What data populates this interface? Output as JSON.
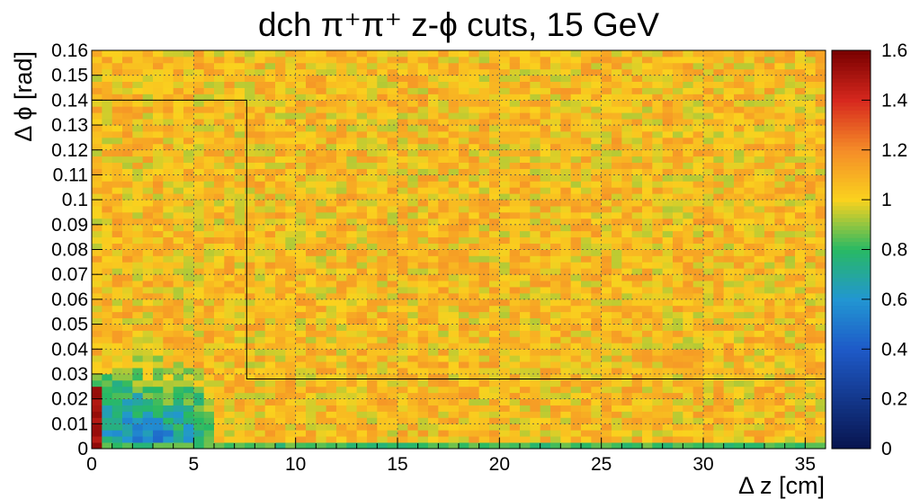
{
  "chart_data": {
    "type": "heatmap",
    "title": "dch π⁺π⁺  z-ϕ cuts, 15 GeV",
    "xlabel": "Δ z [cm]",
    "ylabel": "Δ ϕ [rad]",
    "xlim": [
      0,
      36
    ],
    "ylim": [
      0,
      0.16
    ],
    "x_ticks": [
      0,
      5,
      10,
      15,
      20,
      25,
      30,
      35
    ],
    "x_tick_labels": [
      "0",
      "5",
      "10",
      "15",
      "20",
      "25",
      "30",
      "35"
    ],
    "y_ticks": [
      0,
      0.01,
      0.02,
      0.03,
      0.04,
      0.05,
      0.06,
      0.07,
      0.08,
      0.09,
      0.1,
      0.11,
      0.12,
      0.13,
      0.14,
      0.15,
      0.16
    ],
    "y_tick_labels": [
      "0",
      "0.01",
      "0.02",
      "0.03",
      "0.04",
      "0.05",
      "0.06",
      "0.07",
      "0.08",
      "0.09",
      "0.1",
      "0.11",
      "0.12",
      "0.13",
      "0.14",
      "0.15",
      "0.16"
    ],
    "zlim": [
      0,
      1.6
    ],
    "z_ticks": [
      0,
      0.2,
      0.4,
      0.6,
      0.8,
      1,
      1.2,
      1.4,
      1.6
    ],
    "z_tick_labels": [
      "0",
      "0.2",
      "0.4",
      "0.6",
      "0.8",
      "1",
      "1.2",
      "1.4",
      "1.6"
    ],
    "grid": true,
    "bins": {
      "nx": 72,
      "ny": 64
    },
    "cells_summary": {
      "bulk_mean": 1.05,
      "bulk_spread": 0.12,
      "low_dphi_band": {
        "dphi_max": 0.0025,
        "value": 0.82
      },
      "depletion_region": {
        "dz_max": 6.0,
        "dphi_max": 0.04,
        "min_value": 0.55
      },
      "enhancement_region": {
        "dz_max": 0.7,
        "dphi_max": 0.025,
        "value": 1.5
      }
    },
    "cut_boundary": {
      "points": [
        [
          0,
          0.14
        ],
        [
          7.6,
          0.14
        ],
        [
          7.6,
          0.028
        ],
        [
          36,
          0.028
        ]
      ]
    },
    "colorscale": "kBird-rainbow"
  }
}
